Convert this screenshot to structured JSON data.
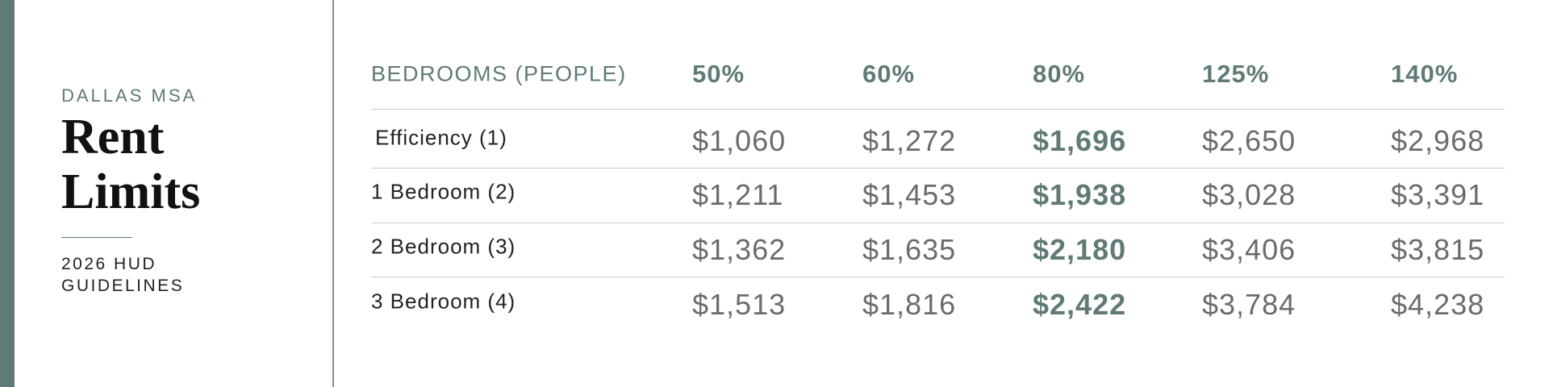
{
  "sidebar": {
    "region": "DALLAS MSA",
    "title_lines": [
      "Rent",
      "Limits"
    ],
    "subtitle_lines": [
      "2026 HUD",
      "GUIDELINES"
    ]
  },
  "table": {
    "header": [
      "BEDROOMS (PEOPLE)",
      "50%",
      "60%",
      "80%",
      "125%",
      "140%"
    ],
    "highlight_column": 3,
    "rows": [
      [
        "Efficiency (1)",
        "$1,060",
        "$1,272",
        "$1,696",
        "$2,650",
        "$2,968"
      ],
      [
        "1 Bedroom (2)",
        "$1,211",
        "$1,453",
        "$1,938",
        "$3,028",
        "$3,391"
      ],
      [
        "2 Bedroom (3)",
        "$1,362",
        "$1,635",
        "$2,180",
        "$3,406",
        "$3,815"
      ],
      [
        "3 Bedroom (4)",
        "$1,513",
        "$1,816",
        "$2,422",
        "$3,784",
        "$4,238"
      ]
    ]
  }
}
